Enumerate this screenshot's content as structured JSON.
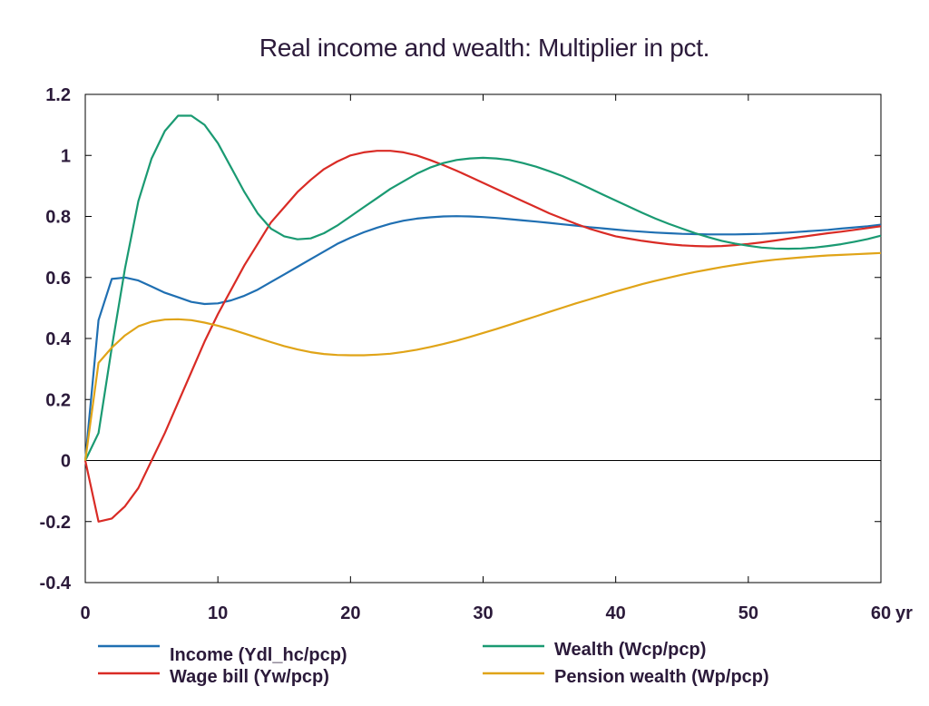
{
  "chart_data": {
    "type": "line",
    "title": "Real income and wealth: Multiplier in pct.",
    "xlabel": "",
    "ylabel": "",
    "x_unit_label": "yr",
    "xlim": [
      0,
      60
    ],
    "ylim": [
      -0.4,
      1.2
    ],
    "x_ticks": [
      0,
      10,
      20,
      30,
      40,
      50,
      60
    ],
    "x_tick_labels": [
      "0",
      "10",
      "20",
      "30",
      "40",
      "50",
      "60"
    ],
    "y_ticks": [
      -0.4,
      -0.2,
      0,
      0.2,
      0.4,
      0.6,
      0.8,
      1,
      1.2
    ],
    "y_tick_labels": [
      "-0.4",
      "-0.2",
      "0",
      "0.2",
      "0.4",
      "0.6",
      "0.8",
      "1",
      "1.2"
    ],
    "grid": false,
    "zero_line": true,
    "legend_placement": "bottom",
    "x": [
      0,
      1,
      2,
      3,
      4,
      5,
      6,
      7,
      8,
      9,
      10,
      11,
      12,
      13,
      14,
      15,
      16,
      17,
      18,
      19,
      20,
      21,
      22,
      23,
      24,
      25,
      26,
      27,
      28,
      29,
      30,
      31,
      32,
      33,
      34,
      35,
      36,
      37,
      38,
      39,
      40,
      41,
      42,
      43,
      44,
      45,
      46,
      47,
      48,
      49,
      50,
      51,
      52,
      53,
      54,
      55,
      56,
      57,
      58,
      59,
      60
    ],
    "series": [
      {
        "name": "Income (Ydl_hc/pcp)",
        "color": "#1f6fb2",
        "values": [
          0,
          0.46,
          0.595,
          0.6,
          0.59,
          0.57,
          0.55,
          0.535,
          0.52,
          0.513,
          0.515,
          0.525,
          0.54,
          0.56,
          0.585,
          0.61,
          0.635,
          0.66,
          0.685,
          0.71,
          0.73,
          0.748,
          0.763,
          0.776,
          0.786,
          0.793,
          0.797,
          0.8,
          0.801,
          0.8,
          0.798,
          0.795,
          0.791,
          0.787,
          0.783,
          0.779,
          0.774,
          0.77,
          0.765,
          0.761,
          0.757,
          0.753,
          0.75,
          0.747,
          0.745,
          0.743,
          0.742,
          0.741,
          0.741,
          0.741,
          0.742,
          0.743,
          0.745,
          0.747,
          0.75,
          0.753,
          0.756,
          0.76,
          0.764,
          0.768,
          0.773
        ]
      },
      {
        "name": "Wage bill (Yw/pcp)",
        "color": "#d92b25",
        "values": [
          0,
          -0.2,
          -0.19,
          -0.15,
          -0.09,
          0,
          0.09,
          0.19,
          0.29,
          0.39,
          0.48,
          0.56,
          0.64,
          0.71,
          0.78,
          0.83,
          0.88,
          0.92,
          0.955,
          0.98,
          1.0,
          1.01,
          1.015,
          1.015,
          1.01,
          1.0,
          0.985,
          0.968,
          0.95,
          0.93,
          0.91,
          0.89,
          0.87,
          0.85,
          0.83,
          0.81,
          0.793,
          0.776,
          0.76,
          0.747,
          0.735,
          0.727,
          0.72,
          0.714,
          0.709,
          0.705,
          0.703,
          0.702,
          0.703,
          0.706,
          0.71,
          0.715,
          0.721,
          0.727,
          0.733,
          0.739,
          0.745,
          0.75,
          0.756,
          0.762,
          0.768
        ]
      },
      {
        "name": "Wealth (Wcp/pcp)",
        "color": "#1a9a72",
        "values": [
          0,
          0.09,
          0.37,
          0.63,
          0.85,
          0.99,
          1.08,
          1.13,
          1.13,
          1.1,
          1.04,
          0.96,
          0.88,
          0.81,
          0.76,
          0.735,
          0.725,
          0.728,
          0.745,
          0.77,
          0.8,
          0.83,
          0.86,
          0.89,
          0.915,
          0.94,
          0.96,
          0.975,
          0.985,
          0.99,
          0.992,
          0.99,
          0.985,
          0.975,
          0.963,
          0.948,
          0.932,
          0.913,
          0.893,
          0.872,
          0.852,
          0.832,
          0.812,
          0.793,
          0.776,
          0.76,
          0.745,
          0.732,
          0.72,
          0.711,
          0.704,
          0.698,
          0.695,
          0.694,
          0.695,
          0.698,
          0.703,
          0.709,
          0.717,
          0.726,
          0.737
        ]
      },
      {
        "name": "Pension wealth (Wp/pcp)",
        "color": "#e0a418",
        "values": [
          0,
          0.32,
          0.37,
          0.41,
          0.44,
          0.455,
          0.462,
          0.463,
          0.46,
          0.452,
          0.442,
          0.43,
          0.416,
          0.402,
          0.388,
          0.375,
          0.364,
          0.355,
          0.349,
          0.346,
          0.345,
          0.345,
          0.347,
          0.35,
          0.356,
          0.363,
          0.372,
          0.382,
          0.393,
          0.405,
          0.418,
          0.431,
          0.445,
          0.459,
          0.473,
          0.487,
          0.501,
          0.515,
          0.528,
          0.541,
          0.554,
          0.566,
          0.578,
          0.589,
          0.599,
          0.609,
          0.618,
          0.626,
          0.634,
          0.641,
          0.647,
          0.653,
          0.658,
          0.662,
          0.666,
          0.669,
          0.672,
          0.674,
          0.676,
          0.678,
          0.68
        ]
      }
    ]
  }
}
